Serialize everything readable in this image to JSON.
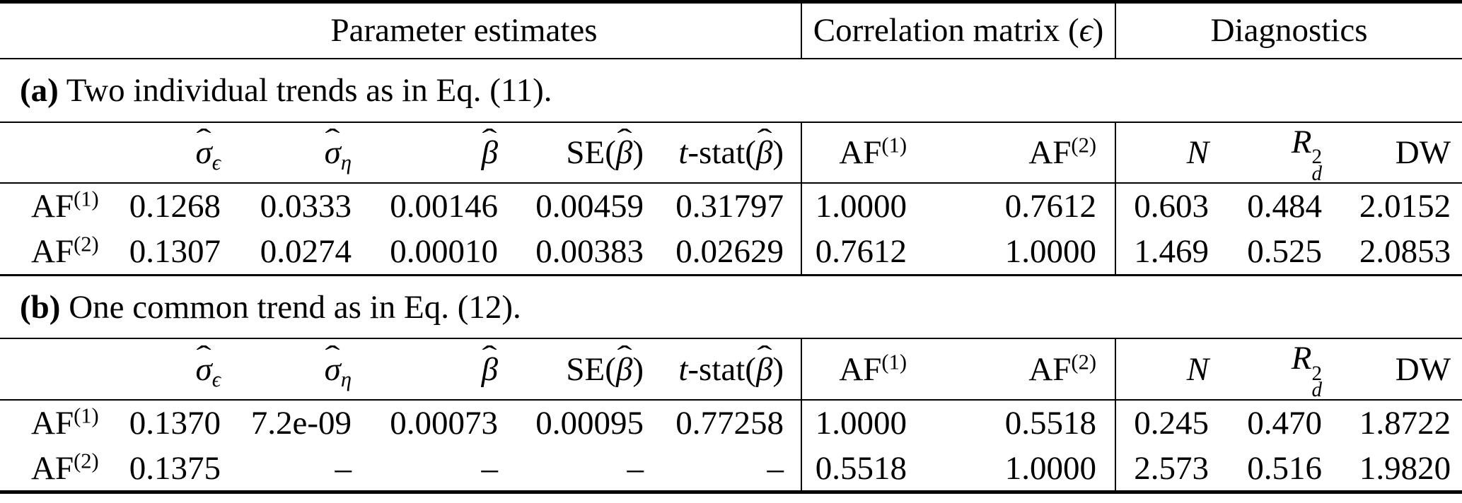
{
  "glyphs": {
    "hat": "ˆ"
  },
  "colors": {
    "text": "#000000",
    "background": "#ffffff",
    "rule": "#000000"
  },
  "group_header": {
    "parameter_estimates": "Parameter estimates",
    "correlation_matrix_parts": [
      {
        "t": "up",
        "v": "Correlation matrix ("
      },
      {
        "t": "it",
        "v": "ϵ"
      },
      {
        "t": "up",
        "v": ")"
      }
    ],
    "diagnostics": "Diagnostics"
  },
  "columns": [
    {
      "name": "sigma-epsilon-hat",
      "parts": [
        {
          "t": "hat",
          "v": "σ"
        },
        {
          "t": "sub",
          "v": "ϵ"
        }
      ]
    },
    {
      "name": "sigma-eta-hat",
      "parts": [
        {
          "t": "hat",
          "v": "σ"
        },
        {
          "t": "sub",
          "v": "η"
        }
      ]
    },
    {
      "name": "beta-hat",
      "parts": [
        {
          "t": "hat",
          "v": "β"
        }
      ]
    },
    {
      "name": "se-beta-hat",
      "parts": [
        {
          "t": "up",
          "v": "SE("
        },
        {
          "t": "hat",
          "v": "β"
        },
        {
          "t": "up",
          "v": ")"
        }
      ]
    },
    {
      "name": "t-stat-beta-hat",
      "parts": [
        {
          "t": "it",
          "v": "t"
        },
        {
          "t": "up",
          "v": "-stat("
        },
        {
          "t": "hat",
          "v": "β"
        },
        {
          "t": "up",
          "v": ")"
        }
      ]
    },
    {
      "name": "af-1",
      "parts": [
        {
          "t": "up",
          "v": "AF"
        },
        {
          "t": "sup",
          "v": "(1)"
        }
      ]
    },
    {
      "name": "af-2",
      "parts": [
        {
          "t": "up",
          "v": "AF"
        },
        {
          "t": "sup",
          "v": "(2)"
        }
      ]
    },
    {
      "name": "n",
      "parts": [
        {
          "t": "it",
          "v": "N"
        }
      ]
    },
    {
      "name": "r2d",
      "parts": [
        {
          "t": "it",
          "v": "R"
        },
        {
          "t": "stack",
          "sup": "2",
          "sub": "d"
        }
      ]
    },
    {
      "name": "dw",
      "parts": [
        {
          "t": "up",
          "v": "DW"
        }
      ]
    }
  ],
  "sections": [
    {
      "label_bold": "(a)",
      "label_rest": " Two individual trends as in Eq. (11).",
      "rows": [
        {
          "name": "af-1",
          "label_parts": [
            {
              "t": "up",
              "v": "AF"
            },
            {
              "t": "sup",
              "v": "(1)"
            }
          ],
          "values": [
            "0.1268",
            "0.0333",
            "0.00146",
            "0.00459",
            "0.31797",
            "1.0000",
            "0.7612",
            "0.603",
            "0.484",
            "2.0152"
          ]
        },
        {
          "name": "af-2",
          "label_parts": [
            {
              "t": "up",
              "v": "AF"
            },
            {
              "t": "sup",
              "v": "(2)"
            }
          ],
          "values": [
            "0.1307",
            "0.0274",
            "0.00010",
            "0.00383",
            "0.02629",
            "0.7612",
            "1.0000",
            "1.469",
            "0.525",
            "2.0853"
          ]
        }
      ]
    },
    {
      "label_bold": "(b)",
      "label_rest": " One common trend as in Eq. (12).",
      "rows": [
        {
          "name": "af-1",
          "label_parts": [
            {
              "t": "up",
              "v": "AF"
            },
            {
              "t": "sup",
              "v": "(1)"
            }
          ],
          "values": [
            "0.1370",
            "7.2e-09",
            "0.00073",
            "0.00095",
            "0.77258",
            "1.0000",
            "0.5518",
            "0.245",
            "0.470",
            "1.8722"
          ]
        },
        {
          "name": "af-2",
          "label_parts": [
            {
              "t": "up",
              "v": "AF"
            },
            {
              "t": "sup",
              "v": "(2)"
            }
          ],
          "values": [
            "0.1375",
            "–",
            "–",
            "–",
            "–",
            "0.5518",
            "1.0000",
            "2.573",
            "0.516",
            "1.9820"
          ]
        }
      ]
    }
  ]
}
